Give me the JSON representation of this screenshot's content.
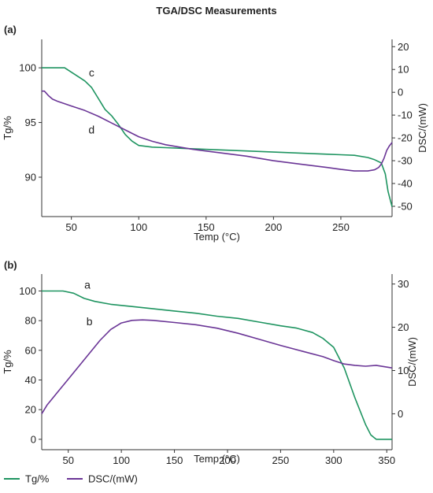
{
  "title": "TGA/DSC Measurements",
  "legend": [
    {
      "label": "Tg/%",
      "color": "#1e9460"
    },
    {
      "label": "DSC/(mW)",
      "color": "#6a3596"
    }
  ],
  "chart_data": [
    {
      "panel": "(a)",
      "type": "line",
      "xlabel": "Temp (°C)",
      "ylabel": "Tg/%",
      "y2label": "DSC/(mW)",
      "xlim": [
        28,
        288
      ],
      "ylim": [
        86.4,
        102.6
      ],
      "y2lim": [
        -54.5,
        23.2
      ],
      "xticks": [
        50,
        100,
        150,
        200,
        250
      ],
      "yticks": [
        90,
        95,
        100
      ],
      "y2ticks": [
        20,
        10,
        0,
        -10,
        -20,
        -30,
        -40,
        -50
      ],
      "grid": false,
      "series": [
        {
          "name": "Tg/%",
          "axis": "left",
          "color": "#1e9460",
          "label": "c",
          "x": [
            28,
            40,
            45,
            50,
            55,
            60,
            65,
            70,
            75,
            80,
            85,
            90,
            95,
            100,
            110,
            120,
            140,
            160,
            180,
            200,
            220,
            240,
            250,
            260,
            270,
            275,
            280,
            283,
            285,
            288
          ],
          "y": [
            100.0,
            100.0,
            100.0,
            99.6,
            99.2,
            98.8,
            98.2,
            97.2,
            96.2,
            95.6,
            94.8,
            93.9,
            93.3,
            92.9,
            92.75,
            92.7,
            92.6,
            92.5,
            92.4,
            92.3,
            92.2,
            92.1,
            92.05,
            92.0,
            91.8,
            91.6,
            91.3,
            90.3,
            88.7,
            87.3
          ]
        },
        {
          "name": "DSC/(mW)",
          "axis": "right",
          "color": "#6a3596",
          "label": "d",
          "x": [
            28,
            30,
            33,
            36,
            40,
            50,
            60,
            70,
            80,
            90,
            100,
            110,
            120,
            140,
            160,
            180,
            200,
            220,
            240,
            250,
            260,
            270,
            275,
            278,
            280,
            282,
            284,
            286,
            288
          ],
          "y": [
            0.5,
            0.5,
            -1.5,
            -3.0,
            -4.0,
            -6.0,
            -8.0,
            -10.5,
            -13.5,
            -16.5,
            -19.5,
            -21.5,
            -23.0,
            -25.0,
            -26.5,
            -28.0,
            -30.0,
            -31.5,
            -33.0,
            -33.8,
            -34.5,
            -34.5,
            -34.0,
            -33.0,
            -31.5,
            -29.0,
            -25.5,
            -23.5,
            -22.0
          ]
        }
      ]
    },
    {
      "panel": "(b)",
      "type": "line",
      "xlabel": "Temp (°C)",
      "ylabel": "Tg/%",
      "y2label": "DSC/(mW)",
      "xlim": [
        25,
        355
      ],
      "ylim": [
        -7,
        111.4
      ],
      "y2lim": [
        -8.3,
        32.3
      ],
      "xticks": [
        50,
        100,
        150,
        200,
        250,
        300,
        350
      ],
      "yticks": [
        0,
        20,
        40,
        60,
        80,
        100
      ],
      "y2ticks": [
        30,
        20,
        10,
        0
      ],
      "grid": false,
      "series": [
        {
          "name": "Tg/%",
          "axis": "left",
          "color": "#1e9460",
          "label": "a",
          "x": [
            25,
            45,
            55,
            65,
            75,
            90,
            110,
            130,
            150,
            170,
            190,
            210,
            230,
            250,
            265,
            280,
            290,
            300,
            310,
            320,
            330,
            335,
            340,
            345,
            355
          ],
          "y": [
            100,
            100,
            98.5,
            95,
            93,
            91,
            89.5,
            88,
            86.5,
            85,
            83,
            81.5,
            79,
            76.5,
            75,
            72,
            68,
            62,
            48,
            28,
            10,
            3,
            0,
            0,
            0
          ]
        },
        {
          "name": "DSC/(mW)",
          "axis": "right",
          "color": "#6a3596",
          "label": "b",
          "x": [
            25,
            30,
            40,
            50,
            60,
            70,
            80,
            90,
            100,
            110,
            120,
            130,
            150,
            170,
            190,
            210,
            230,
            250,
            270,
            290,
            300,
            310,
            320,
            330,
            340,
            355
          ],
          "y": [
            0,
            2,
            5,
            8,
            11,
            14,
            17,
            19.5,
            21,
            21.6,
            21.7,
            21.6,
            21.1,
            20.6,
            19.8,
            18.6,
            17.2,
            15.8,
            14.5,
            13.2,
            12.3,
            11.5,
            11.2,
            11.0,
            11.2,
            10.6
          ]
        }
      ]
    }
  ]
}
